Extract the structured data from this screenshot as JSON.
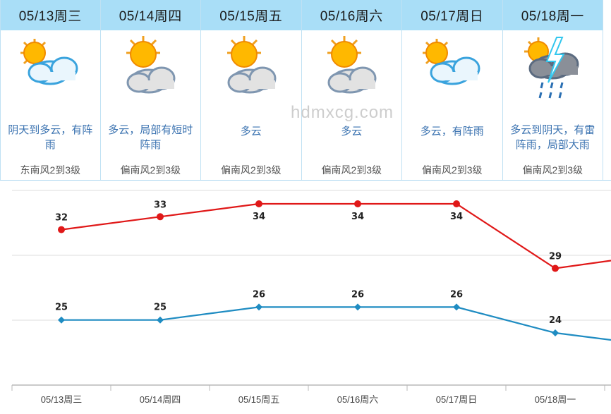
{
  "forecast": {
    "days": [
      {
        "date": "05/13周三",
        "icon": "sun-behind-cloud-icon",
        "desc": "阴天到多云，有阵雨",
        "wind": "东南风2到3级"
      },
      {
        "date": "05/14周四",
        "icon": "sun-behind-grey-cloud-icon",
        "desc": "多云，局部有短时阵雨",
        "wind": "偏南风2到3级"
      },
      {
        "date": "05/15周五",
        "icon": "sun-behind-grey-cloud-icon",
        "desc": "多云",
        "wind": "偏南风2到3级"
      },
      {
        "date": "05/16周六",
        "icon": "sun-behind-grey-cloud-icon",
        "desc": "多云",
        "wind": "偏南风2到3级"
      },
      {
        "date": "05/17周日",
        "icon": "sun-behind-cloud-icon",
        "desc": "多云，有阵雨",
        "wind": "偏南风2到3级"
      },
      {
        "date": "05/18周一",
        "icon": "thunderstorm-icon",
        "desc": "多云到阴天，有雷阵雨，局部大雨",
        "wind": "偏南风2到3级"
      }
    ]
  },
  "watermark": "hdmxcg.com",
  "chart_data": {
    "type": "line",
    "categories": [
      "05/13周三",
      "05/14周四",
      "05/15周五",
      "05/16周六",
      "05/17周日",
      "05/18周一"
    ],
    "series": [
      {
        "values": [
          32,
          33,
          34,
          34,
          34,
          29
        ],
        "color": "#e01818"
      },
      {
        "values": [
          25,
          25,
          26,
          26,
          26,
          24
        ],
        "color": "#1f8cc2"
      }
    ],
    "title": "",
    "xlabel": "",
    "ylabel": "",
    "grid": true
  }
}
